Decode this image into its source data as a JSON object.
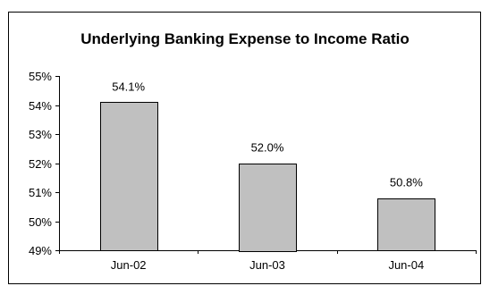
{
  "chart_data": {
    "type": "bar",
    "title": "Underlying Banking Expense to Income Ratio",
    "xlabel": "",
    "ylabel": "",
    "categories": [
      "Jun-02",
      "Jun-03",
      "Jun-04"
    ],
    "values": [
      54.1,
      52.0,
      50.8
    ],
    "data_labels": [
      "54.1%",
      "52.0%",
      "50.8%"
    ],
    "ylim": [
      49,
      55
    ],
    "y_ticks": [
      49,
      50,
      51,
      52,
      53,
      54,
      55
    ],
    "y_tick_labels": [
      "49%",
      "50%",
      "51%",
      "52%",
      "53%",
      "54%",
      "55%"
    ],
    "grid": false,
    "legend": "none",
    "bar_color": "#c0c0c0",
    "bar_border_color": "#000000"
  }
}
